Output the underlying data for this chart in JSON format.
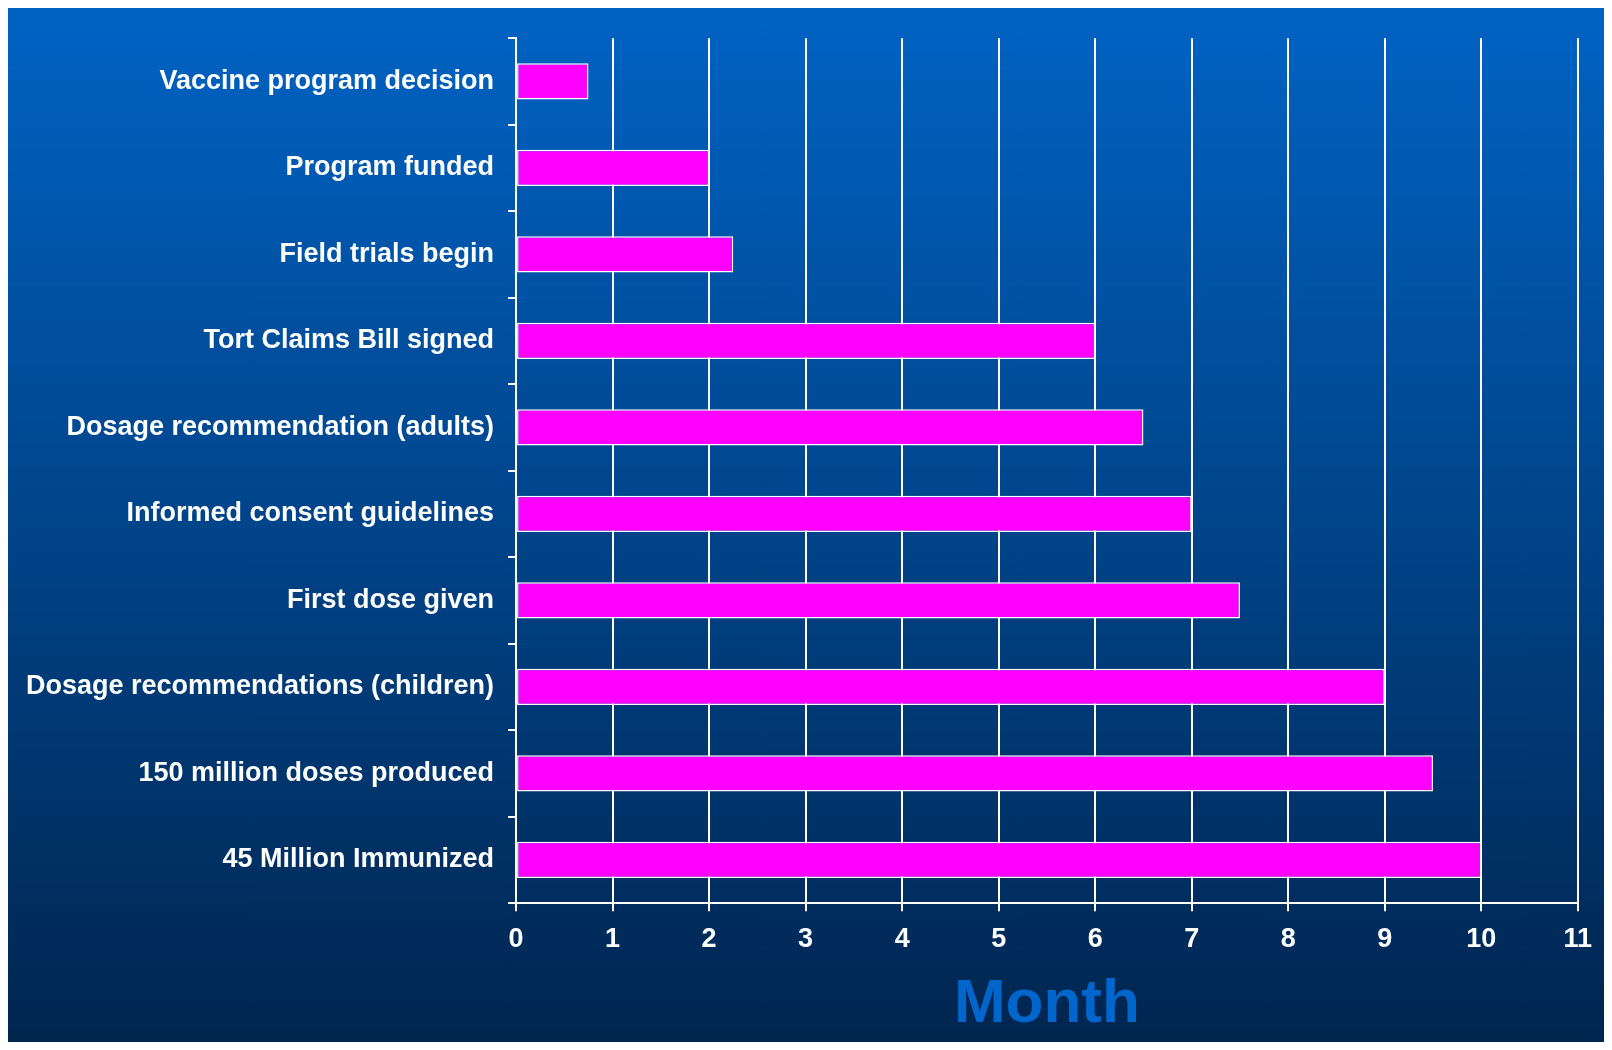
{
  "chart_data": {
    "type": "bar",
    "orientation": "horizontal",
    "xlabel": "Month",
    "categories": [
      "Vaccine program decision",
      "Program funded",
      "Field trials begin",
      "Tort Claims Bill signed",
      "Dosage recommendation (adults)",
      "Informed consent guidelines",
      "First dose given",
      "Dosage recommendations (children)",
      "150 million doses produced",
      "45 Million Immunized"
    ],
    "values": [
      0.75,
      2,
      2.25,
      6,
      6.5,
      7,
      7.5,
      9,
      9.5,
      10
    ],
    "color": "#ff00ff",
    "xlim": [
      0,
      11
    ],
    "xticks": [
      0,
      1,
      2,
      3,
      4,
      5,
      6,
      7,
      8,
      9,
      10,
      11
    ],
    "grid": "x",
    "legend": false
  }
}
